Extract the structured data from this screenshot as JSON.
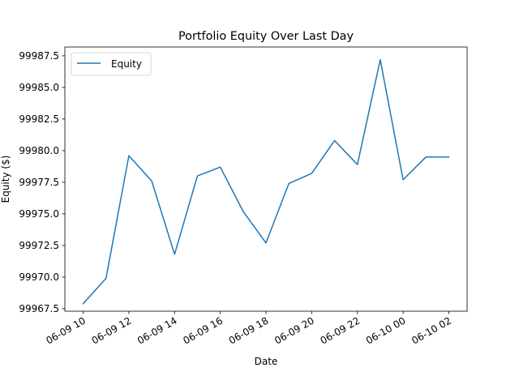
{
  "chart_data": {
    "type": "line",
    "title": "Portfolio Equity Over Last Day",
    "xlabel": "Date",
    "ylabel": "Equity ($)",
    "x": [
      "2024-06-09 10:00",
      "2024-06-09 11:00",
      "2024-06-09 12:00",
      "2024-06-09 13:00",
      "2024-06-09 14:00",
      "2024-06-09 15:00",
      "2024-06-09 16:00",
      "2024-06-09 17:00",
      "2024-06-09 18:00",
      "2024-06-09 19:00",
      "2024-06-09 20:00",
      "2024-06-09 21:00",
      "2024-06-09 22:00",
      "2024-06-09 23:00",
      "2024-06-10 00:00",
      "2024-06-10 01:00",
      "2024-06-10 02:00"
    ],
    "series": [
      {
        "name": "Equity",
        "color": "#1f77b4",
        "values": [
          99967.9,
          99969.9,
          99979.6,
          99977.6,
          99971.8,
          99978.0,
          99978.7,
          99975.2,
          99972.7,
          99977.4,
          99978.2,
          99980.8,
          99978.9,
          99987.2,
          99977.7,
          99979.5,
          99979.5
        ]
      }
    ],
    "x_ticks": [
      "06-09 10",
      "06-09 12",
      "06-09 14",
      "06-09 16",
      "06-09 18",
      "06-09 20",
      "06-09 22",
      "06-10 00",
      "06-10 02"
    ],
    "x_tick_hours": [
      0,
      2,
      4,
      6,
      8,
      10,
      12,
      14,
      16
    ],
    "y_ticks": [
      "99967.5",
      "99970.0",
      "99972.5",
      "99975.0",
      "99977.5",
      "99980.0",
      "99982.5",
      "99985.0",
      "99987.5"
    ],
    "y_tick_values": [
      99967.5,
      99970.0,
      99972.5,
      99975.0,
      99977.5,
      99980.0,
      99982.5,
      99985.0,
      99987.5
    ],
    "ylim": [
      99967.3,
      99988.2
    ],
    "xlim_hours": [
      -0.8,
      16.8
    ],
    "grid": false,
    "legend": {
      "placement": "top-left",
      "entries": [
        "Equity"
      ]
    }
  }
}
